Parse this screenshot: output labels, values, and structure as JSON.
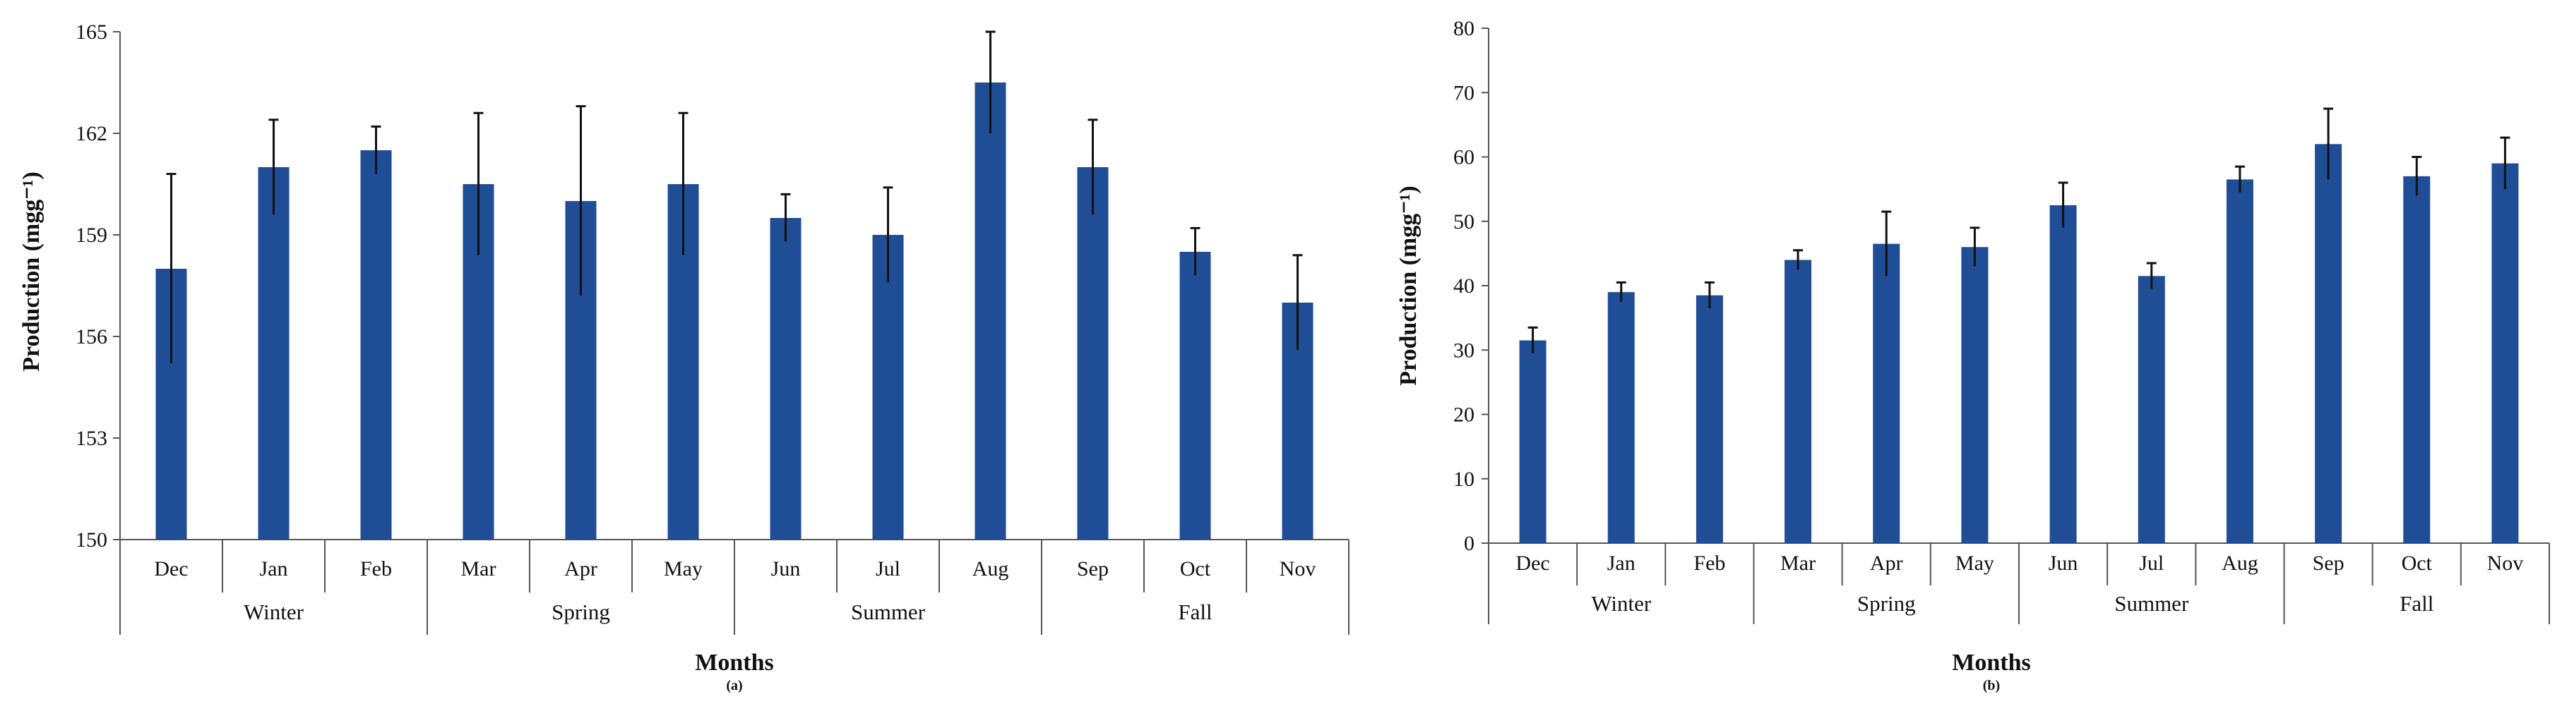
{
  "chart_data": [
    {
      "id": "a",
      "type": "bar",
      "title": "",
      "xlabel": "Months",
      "ylabel": "Production (mgg⁻¹)",
      "panel_label": "(a)",
      "ylim": [
        150,
        165
      ],
      "yticks": [
        "150",
        "153",
        "156",
        "159",
        "162",
        "165"
      ],
      "categories": [
        "Dec",
        "Jan",
        "Feb",
        "Mar",
        "Apr",
        "May",
        "Jun",
        "Jul",
        "Aug",
        "Sep",
        "Oct",
        "Nov"
      ],
      "values": [
        158.0,
        161.0,
        161.5,
        160.5,
        160.0,
        160.5,
        159.5,
        159.0,
        163.5,
        161.0,
        158.5,
        157.0
      ],
      "errors": [
        2.8,
        1.4,
        0.7,
        2.1,
        2.8,
        2.1,
        0.7,
        1.4,
        1.5,
        1.4,
        0.7,
        1.4
      ],
      "groups": [
        {
          "label": "Winter",
          "span": 3
        },
        {
          "label": "Spring",
          "span": 3
        },
        {
          "label": "Summer",
          "span": 3
        },
        {
          "label": "Fall",
          "span": 3
        }
      ],
      "color": "#1f4e96"
    },
    {
      "id": "b",
      "type": "bar",
      "title": "",
      "xlabel": "Months",
      "ylabel": "Production (mgg⁻¹)",
      "panel_label": "(b)",
      "ylim": [
        0,
        80
      ],
      "yticks": [
        "0",
        "10",
        "20",
        "30",
        "40",
        "50",
        "60",
        "70",
        "80"
      ],
      "categories": [
        "Dec",
        "Jan",
        "Feb",
        "Mar",
        "Apr",
        "May",
        "Jun",
        "Jul",
        "Aug",
        "Sep",
        "Oct",
        "Nov"
      ],
      "values": [
        31.5,
        39.0,
        38.5,
        44.0,
        46.5,
        46.0,
        52.5,
        41.5,
        56.5,
        62.0,
        57.0,
        59.0
      ],
      "errors": [
        2.0,
        1.5,
        2.0,
        1.5,
        5.0,
        3.0,
        3.5,
        2.0,
        2.0,
        5.5,
        3.0,
        4.0
      ],
      "groups": [
        {
          "label": "Winter",
          "span": 3
        },
        {
          "label": "Spring",
          "span": 3
        },
        {
          "label": "Summer",
          "span": 3
        },
        {
          "label": "Fall",
          "span": 3
        }
      ],
      "color": "#1f4e96"
    }
  ]
}
